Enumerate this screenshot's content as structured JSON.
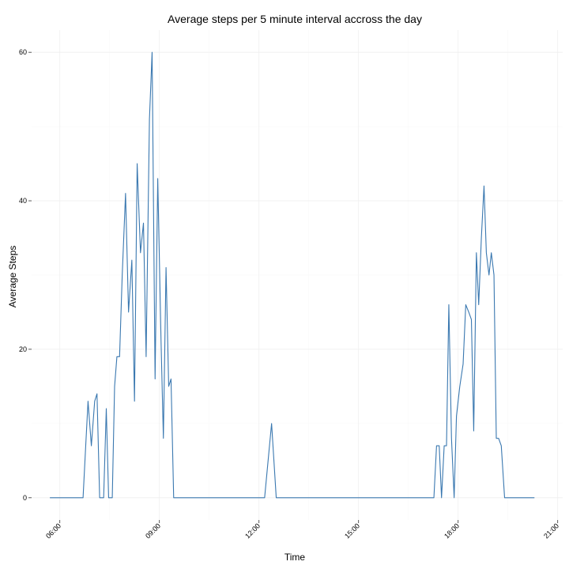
{
  "chart_data": {
    "type": "line",
    "title": "Average steps per 5 minute interval accross the day",
    "xlabel": "Time",
    "ylabel": "Average Steps",
    "x_tick_labels": [
      "06:00",
      "09:00",
      "12:00",
      "15:00",
      "18:00",
      "21:00"
    ],
    "x_tick_hours": [
      6,
      9,
      12,
      15,
      18,
      21
    ],
    "y_ticks": [
      0,
      20,
      40,
      60
    ],
    "xlim_hours": [
      5.15,
      21.15
    ],
    "ylim": [
      -3,
      63
    ],
    "grid": true,
    "line_color": "#3a78b0",
    "series": [
      {
        "points": [
          [
            5.7,
            0
          ],
          [
            5.8,
            0
          ],
          [
            6.0,
            0
          ],
          [
            6.2,
            0
          ],
          [
            6.4,
            0
          ],
          [
            6.55,
            0
          ],
          [
            6.7,
            0
          ],
          [
            6.78,
            7
          ],
          [
            6.85,
            13
          ],
          [
            6.95,
            7
          ],
          [
            7.05,
            13
          ],
          [
            7.12,
            14
          ],
          [
            7.2,
            0
          ],
          [
            7.32,
            0
          ],
          [
            7.4,
            12
          ],
          [
            7.47,
            0
          ],
          [
            7.58,
            0
          ],
          [
            7.65,
            15
          ],
          [
            7.72,
            19
          ],
          [
            7.8,
            19
          ],
          [
            7.88,
            30
          ],
          [
            7.98,
            41
          ],
          [
            8.07,
            25
          ],
          [
            8.17,
            32
          ],
          [
            8.25,
            13
          ],
          [
            8.33,
            45
          ],
          [
            8.43,
            33
          ],
          [
            8.52,
            37
          ],
          [
            8.6,
            19
          ],
          [
            8.7,
            51
          ],
          [
            8.78,
            60
          ],
          [
            8.87,
            16
          ],
          [
            8.95,
            43
          ],
          [
            9.05,
            21
          ],
          [
            9.12,
            8
          ],
          [
            9.2,
            31
          ],
          [
            9.28,
            15
          ],
          [
            9.35,
            16
          ],
          [
            9.43,
            0
          ],
          [
            9.6,
            0
          ],
          [
            10.0,
            0
          ],
          [
            10.5,
            0
          ],
          [
            11.0,
            0
          ],
          [
            11.5,
            0
          ],
          [
            12.0,
            0
          ],
          [
            12.17,
            0
          ],
          [
            12.38,
            10
          ],
          [
            12.52,
            0
          ],
          [
            13.0,
            0
          ],
          [
            14.0,
            0
          ],
          [
            15.0,
            0
          ],
          [
            16.0,
            0
          ],
          [
            17.0,
            0
          ],
          [
            17.27,
            0
          ],
          [
            17.35,
            7
          ],
          [
            17.43,
            7
          ],
          [
            17.5,
            0
          ],
          [
            17.58,
            7
          ],
          [
            17.65,
            7
          ],
          [
            17.72,
            26
          ],
          [
            17.8,
            8
          ],
          [
            17.88,
            0
          ],
          [
            17.95,
            11
          ],
          [
            18.05,
            15
          ],
          [
            18.15,
            18
          ],
          [
            18.23,
            26
          ],
          [
            18.32,
            25
          ],
          [
            18.4,
            24
          ],
          [
            18.47,
            9
          ],
          [
            18.55,
            33
          ],
          [
            18.62,
            26
          ],
          [
            18.7,
            35
          ],
          [
            18.78,
            42
          ],
          [
            18.85,
            33
          ],
          [
            18.93,
            30
          ],
          [
            19.0,
            33
          ],
          [
            19.08,
            30
          ],
          [
            19.15,
            8
          ],
          [
            19.22,
            8
          ],
          [
            19.3,
            7
          ],
          [
            19.4,
            0
          ],
          [
            19.6,
            0
          ],
          [
            20.0,
            0
          ],
          [
            20.3,
            0
          ]
        ]
      }
    ]
  }
}
